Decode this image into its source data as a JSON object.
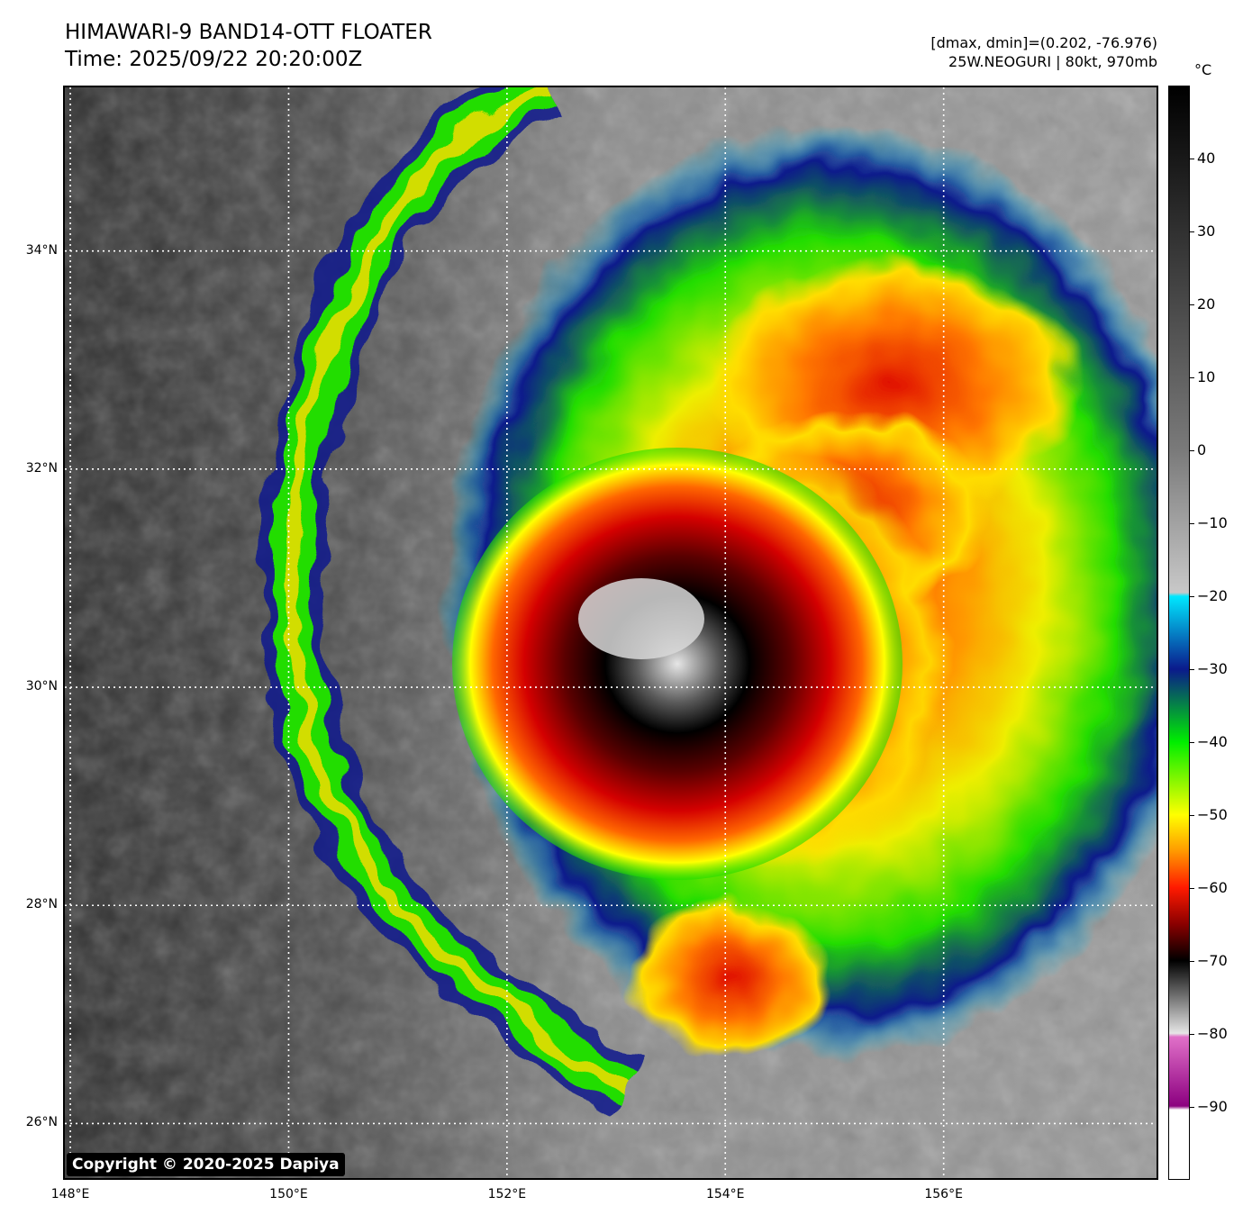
{
  "header": {
    "title_line1": "HIMAWARI-9 BAND14-OTT FLOATER",
    "title_line2": "Time: 2025/09/22 20:20:00Z",
    "info_line1": "[dmax, dmin]=(0.202, -76.976)",
    "info_line2": "25W.NEOGURI | 80kt, 970mb"
  },
  "map": {
    "lon_range": [
      147.95,
      157.95
    ],
    "lat_range": [
      25.5,
      35.5
    ],
    "grid": "dotted white",
    "lon_ticks": [
      148,
      150,
      152,
      154,
      156
    ],
    "lon_labels": [
      "148°E",
      "150°E",
      "152°E",
      "154°E",
      "156°E"
    ],
    "lat_ticks": [
      26,
      28,
      30,
      32,
      34
    ],
    "lat_labels": [
      "26°N",
      "28°N",
      "30°N",
      "32°N",
      "34°N"
    ],
    "copyright": "Copyright © 2020-2025 Dapiya",
    "storm_center": {
      "lon": 153.1,
      "lat": 30.5
    }
  },
  "colorbar": {
    "unit": "°C",
    "range": [
      -100,
      50
    ],
    "ticks": [
      40,
      30,
      20,
      10,
      0,
      -10,
      -20,
      -30,
      -40,
      -50,
      -60,
      -70,
      -80,
      -90
    ],
    "tick_labels": [
      "40",
      "30",
      "20",
      "10",
      "0",
      "−10",
      "−20",
      "−30",
      "−40",
      "−50",
      "−60",
      "−70",
      "−80",
      "−90"
    ],
    "color_stops": [
      {
        "t": 50,
        "color": "#000000"
      },
      {
        "t": 0,
        "color": "#7a7a7a"
      },
      {
        "t": -19.5,
        "color": "#c8c8c8"
      },
      {
        "t": -20,
        "color": "#00e8ff"
      },
      {
        "t": -30,
        "color": "#0a1a8c"
      },
      {
        "t": -40,
        "color": "#00ee00"
      },
      {
        "t": -50,
        "color": "#ffff00"
      },
      {
        "t": -55,
        "color": "#ff9900"
      },
      {
        "t": -60,
        "color": "#ff1a00"
      },
      {
        "t": -65,
        "color": "#8a0000"
      },
      {
        "t": -70,
        "color": "#000000"
      },
      {
        "t": -80,
        "color": "#e6e6e6"
      },
      {
        "t": -80.5,
        "color": "#e070c8"
      },
      {
        "t": -90,
        "color": "#8c0080"
      },
      {
        "t": -90.5,
        "color": "#ffffff"
      },
      {
        "t": -100,
        "color": "#ffffff"
      }
    ]
  }
}
